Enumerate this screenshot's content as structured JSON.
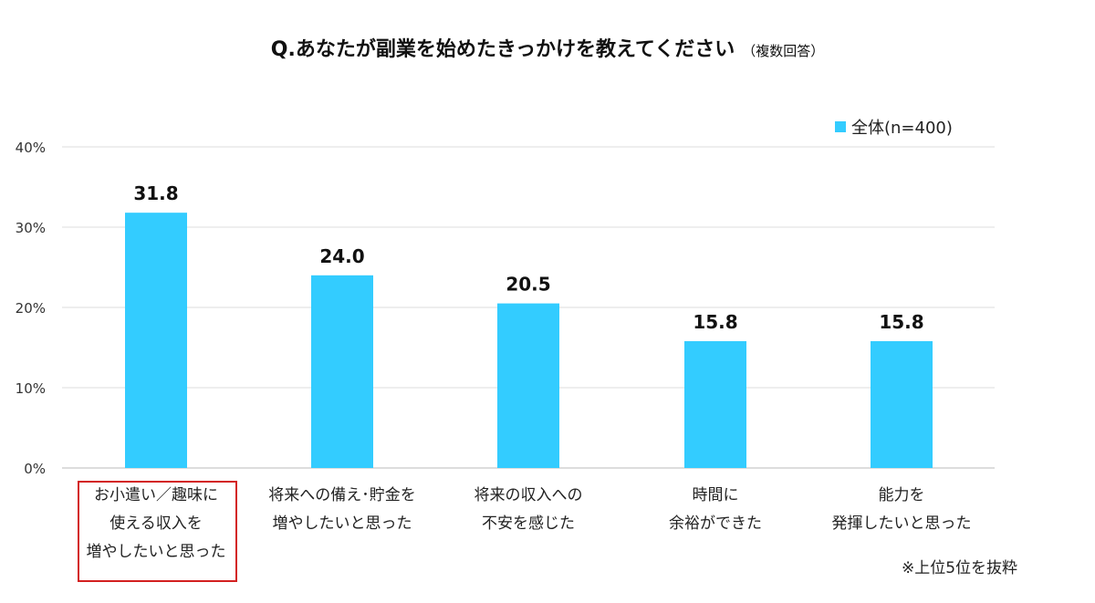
{
  "chart_data": {
    "type": "bar",
    "title": "Q.あなたが副業を始めたきっかけを教えてください",
    "subtitle": "（複数回答）",
    "categories": [
      [
        "お小遣い／趣味に",
        "使える収入を",
        "増やしたいと思った"
      ],
      [
        "将来への備え･貯金を",
        "増やしたいと思った"
      ],
      [
        "将来の収入への",
        "不安を感じた"
      ],
      [
        "時間に",
        "余裕ができた"
      ],
      [
        "能力を",
        "発揮したいと思った"
      ]
    ],
    "series": [
      {
        "name": "全体(n=400)",
        "values": [
          31.8,
          24.0,
          20.5,
          15.8,
          15.8
        ],
        "color": "#33ccff"
      }
    ],
    "data_labels": [
      "31.8",
      "24.0",
      "20.5",
      "15.8",
      "15.8"
    ],
    "yticks": [
      "0%",
      "10%",
      "20%",
      "30%",
      "40%"
    ],
    "ylim": [
      0,
      40
    ],
    "grid": true,
    "legend": "top-right",
    "highlight_color": "#d32020",
    "footnote": "※上位5位を抜粋"
  }
}
